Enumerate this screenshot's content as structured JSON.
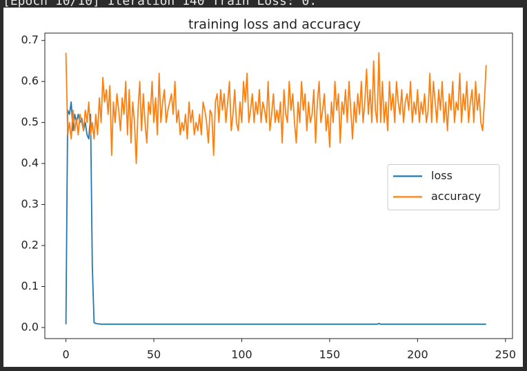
{
  "header": {
    "text": "[Epoch 10/10] Iteration 140     Train Loss: 0."
  },
  "chart_data": {
    "type": "line",
    "title": "training loss and accuracy",
    "x": [
      0,
      1,
      2,
      3,
      4,
      5,
      6,
      7,
      8,
      9,
      10,
      11,
      12,
      13,
      14,
      15,
      16,
      17,
      18,
      19,
      20,
      21,
      22,
      23,
      24,
      25,
      26,
      27,
      28,
      29,
      30,
      31,
      32,
      33,
      34,
      35,
      36,
      37,
      38,
      39,
      40,
      41,
      42,
      43,
      44,
      45,
      46,
      47,
      48,
      49,
      50,
      51,
      52,
      53,
      54,
      55,
      56,
      57,
      58,
      59,
      60,
      61,
      62,
      63,
      64,
      65,
      66,
      67,
      68,
      69,
      70,
      71,
      72,
      73,
      74,
      75,
      76,
      77,
      78,
      79,
      80,
      81,
      82,
      83,
      84,
      85,
      86,
      87,
      88,
      89,
      90,
      91,
      92,
      93,
      94,
      95,
      96,
      97,
      98,
      99,
      100,
      101,
      102,
      103,
      104,
      105,
      106,
      107,
      108,
      109,
      110,
      111,
      112,
      113,
      114,
      115,
      116,
      117,
      118,
      119,
      120,
      121,
      122,
      123,
      124,
      125,
      126,
      127,
      128,
      129,
      130,
      131,
      132,
      133,
      134,
      135,
      136,
      137,
      138,
      139,
      140,
      141,
      142,
      143,
      144,
      145,
      146,
      147,
      148,
      149,
      150,
      151,
      152,
      153,
      154,
      155,
      156,
      157,
      158,
      159,
      160,
      161,
      162,
      163,
      164,
      165,
      166,
      167,
      168,
      169,
      170,
      171,
      172,
      173,
      174,
      175,
      176,
      177,
      178,
      179,
      180,
      181,
      182,
      183,
      184,
      185,
      186,
      187,
      188,
      189,
      190,
      191,
      192,
      193,
      194,
      195,
      196,
      197,
      198,
      199,
      200,
      201,
      202,
      203,
      204,
      205,
      206,
      207,
      208,
      209,
      210,
      211,
      212,
      213,
      214,
      215,
      216,
      217,
      218,
      219,
      220,
      221,
      222,
      223,
      224,
      225,
      226,
      227,
      228,
      229,
      230,
      231,
      232,
      233,
      234,
      235,
      236,
      237,
      238,
      239
    ],
    "series": [
      {
        "name": "loss",
        "color": "#1f77b4",
        "values": [
          0.008,
          0.53,
          0.52,
          0.55,
          0.48,
          0.52,
          0.5,
          0.52,
          0.5,
          0.51,
          0.48,
          0.5,
          0.47,
          0.46,
          0.52,
          0.15,
          0.012,
          0.01,
          0.009,
          0.009,
          0.008,
          0.008,
          0.008,
          0.008,
          0.008,
          0.008,
          0.008,
          0.008,
          0.008,
          0.008,
          0.008,
          0.008,
          0.008,
          0.008,
          0.008,
          0.008,
          0.008,
          0.008,
          0.008,
          0.008,
          0.008,
          0.008,
          0.008,
          0.008,
          0.008,
          0.008,
          0.008,
          0.008,
          0.008,
          0.008,
          0.008,
          0.008,
          0.008,
          0.008,
          0.008,
          0.008,
          0.008,
          0.008,
          0.008,
          0.008,
          0.008,
          0.008,
          0.008,
          0.008,
          0.008,
          0.008,
          0.008,
          0.008,
          0.008,
          0.008,
          0.008,
          0.008,
          0.008,
          0.008,
          0.008,
          0.008,
          0.008,
          0.008,
          0.008,
          0.008,
          0.008,
          0.008,
          0.008,
          0.008,
          0.008,
          0.008,
          0.008,
          0.008,
          0.008,
          0.008,
          0.008,
          0.008,
          0.008,
          0.008,
          0.008,
          0.008,
          0.008,
          0.008,
          0.008,
          0.008,
          0.008,
          0.008,
          0.008,
          0.008,
          0.008,
          0.008,
          0.008,
          0.008,
          0.008,
          0.008,
          0.008,
          0.008,
          0.008,
          0.008,
          0.008,
          0.008,
          0.008,
          0.008,
          0.008,
          0.008,
          0.008,
          0.008,
          0.008,
          0.008,
          0.008,
          0.008,
          0.008,
          0.008,
          0.008,
          0.008,
          0.008,
          0.008,
          0.008,
          0.008,
          0.008,
          0.008,
          0.008,
          0.008,
          0.008,
          0.008,
          0.008,
          0.008,
          0.008,
          0.008,
          0.008,
          0.008,
          0.008,
          0.008,
          0.008,
          0.008,
          0.008,
          0.008,
          0.008,
          0.008,
          0.008,
          0.008,
          0.008,
          0.008,
          0.008,
          0.008,
          0.008,
          0.008,
          0.008,
          0.008,
          0.008,
          0.008,
          0.008,
          0.008,
          0.008,
          0.008,
          0.008,
          0.008,
          0.008,
          0.008,
          0.008,
          0.008,
          0.008,
          0.008,
          0.01,
          0.008,
          0.008,
          0.008,
          0.008,
          0.008,
          0.008,
          0.008,
          0.008,
          0.008,
          0.008,
          0.008,
          0.008,
          0.008,
          0.008,
          0.008,
          0.008,
          0.008,
          0.008,
          0.008,
          0.008,
          0.008,
          0.008,
          0.008,
          0.008,
          0.008,
          0.008,
          0.008,
          0.008,
          0.008,
          0.008,
          0.008,
          0.008,
          0.008,
          0.008,
          0.008,
          0.008,
          0.008,
          0.008,
          0.008,
          0.008,
          0.008,
          0.008,
          0.008,
          0.008,
          0.008,
          0.008,
          0.008,
          0.008,
          0.008,
          0.008,
          0.008,
          0.008,
          0.008,
          0.008,
          0.008,
          0.008,
          0.008,
          0.008,
          0.008,
          0.008,
          0.008
        ]
      },
      {
        "name": "accuracy",
        "color": "#ff7f0e",
        "values": [
          0.67,
          0.47,
          0.5,
          0.46,
          0.53,
          0.48,
          0.51,
          0.47,
          0.52,
          0.5,
          0.48,
          0.53,
          0.5,
          0.55,
          0.47,
          0.5,
          0.46,
          0.52,
          0.47,
          0.56,
          0.5,
          0.61,
          0.55,
          0.58,
          0.52,
          0.59,
          0.42,
          0.55,
          0.5,
          0.57,
          0.53,
          0.48,
          0.56,
          0.52,
          0.6,
          0.47,
          0.58,
          0.45,
          0.55,
          0.5,
          0.4,
          0.53,
          0.6,
          0.48,
          0.57,
          0.5,
          0.45,
          0.55,
          0.52,
          0.6,
          0.5,
          0.56,
          0.47,
          0.62,
          0.5,
          0.55,
          0.58,
          0.5,
          0.53,
          0.55,
          0.57,
          0.52,
          0.6,
          0.5,
          0.53,
          0.47,
          0.5,
          0.48,
          0.52,
          0.46,
          0.55,
          0.5,
          0.53,
          0.47,
          0.5,
          0.48,
          0.52,
          0.47,
          0.55,
          0.53,
          0.5,
          0.45,
          0.53,
          0.52,
          0.42,
          0.55,
          0.57,
          0.5,
          0.58,
          0.53,
          0.57,
          0.5,
          0.55,
          0.6,
          0.48,
          0.52,
          0.58,
          0.5,
          0.48,
          0.55,
          0.5,
          0.6,
          0.55,
          0.62,
          0.5,
          0.53,
          0.57,
          0.5,
          0.55,
          0.52,
          0.58,
          0.5,
          0.55,
          0.53,
          0.5,
          0.6,
          0.48,
          0.52,
          0.57,
          0.5,
          0.53,
          0.5,
          0.55,
          0.45,
          0.58,
          0.52,
          0.5,
          0.6,
          0.53,
          0.57,
          0.5,
          0.45,
          0.55,
          0.5,
          0.6,
          0.53,
          0.57,
          0.48,
          0.55,
          0.5,
          0.52,
          0.58,
          0.45,
          0.55,
          0.6,
          0.5,
          0.53,
          0.57,
          0.48,
          0.52,
          0.44,
          0.55,
          0.5,
          0.6,
          0.53,
          0.57,
          0.45,
          0.55,
          0.52,
          0.58,
          0.5,
          0.6,
          0.53,
          0.46,
          0.55,
          0.5,
          0.57,
          0.52,
          0.6,
          0.5,
          0.55,
          0.63,
          0.52,
          0.58,
          0.5,
          0.65,
          0.53,
          0.5,
          0.67,
          0.5,
          0.6,
          0.5,
          0.55,
          0.48,
          0.6,
          0.53,
          0.57,
          0.5,
          0.6,
          0.55,
          0.52,
          0.58,
          0.5,
          0.55,
          0.57,
          0.53,
          0.6,
          0.5,
          0.55,
          0.52,
          0.58,
          0.5,
          0.55,
          0.52,
          0.57,
          0.5,
          0.53,
          0.62,
          0.5,
          0.6,
          0.55,
          0.5,
          0.58,
          0.53,
          0.6,
          0.5,
          0.55,
          0.48,
          0.57,
          0.53,
          0.6,
          0.5,
          0.55,
          0.53,
          0.62,
          0.5,
          0.57,
          0.53,
          0.6,
          0.5,
          0.55,
          0.58,
          0.5,
          0.6,
          0.53,
          0.57,
          0.5,
          0.48,
          0.55,
          0.64
        ]
      }
    ],
    "xlim": [
      -12,
      254
    ],
    "xticks": [
      0,
      50,
      100,
      150,
      200,
      250
    ],
    "ylim": [
      -0.027,
      0.718
    ],
    "yticks": [
      {
        "value": 0,
        "label": "0.0"
      },
      0.1,
      0.2,
      0.3,
      0.4,
      0.5,
      0.6,
      0.7
    ],
    "grid": false,
    "legend": "center right"
  }
}
